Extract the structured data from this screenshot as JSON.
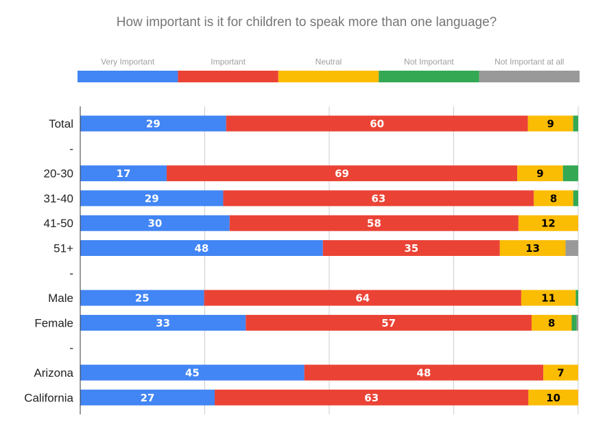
{
  "chart_data": {
    "type": "bar",
    "orientation": "horizontal",
    "stacked": "percent",
    "title": "How important is it for children to speak more than one language?",
    "xlabel": "",
    "ylabel": "",
    "xlim": [
      0,
      100
    ],
    "grid": true,
    "legend_position": "top",
    "categories": [
      "Total",
      "-",
      "20-30",
      "31-40",
      "41-50",
      "51+",
      "-",
      "Male",
      "Female",
      "-",
      "Arizona",
      "California"
    ],
    "series": [
      {
        "name": "Very Important",
        "color": "#4285f4",
        "label_color": "#ffffff",
        "values": [
          29,
          null,
          17,
          29,
          30,
          48,
          null,
          25,
          33,
          null,
          45,
          27
        ]
      },
      {
        "name": "Important",
        "color": "#ea4335",
        "label_color": "#ffffff",
        "values": [
          60,
          null,
          69,
          63,
          58,
          35,
          null,
          64,
          57,
          null,
          48,
          63
        ]
      },
      {
        "name": "Neutral",
        "color": "#fbbc04",
        "label_color": "#000000",
        "values": [
          9,
          null,
          9,
          8,
          12,
          13,
          null,
          11,
          8,
          null,
          7,
          10
        ]
      },
      {
        "name": "Not Important",
        "color": "#34a853",
        "label_color": "#ffffff",
        "values": [
          1,
          null,
          3,
          1,
          0,
          0,
          null,
          0.5,
          1,
          null,
          0,
          0
        ]
      },
      {
        "name": "Not Important at all",
        "color": "#999999",
        "label_color": "#ffffff",
        "values": [
          0,
          null,
          0,
          0,
          0,
          2.5,
          null,
          0,
          0.3,
          null,
          0,
          0
        ]
      }
    ]
  }
}
